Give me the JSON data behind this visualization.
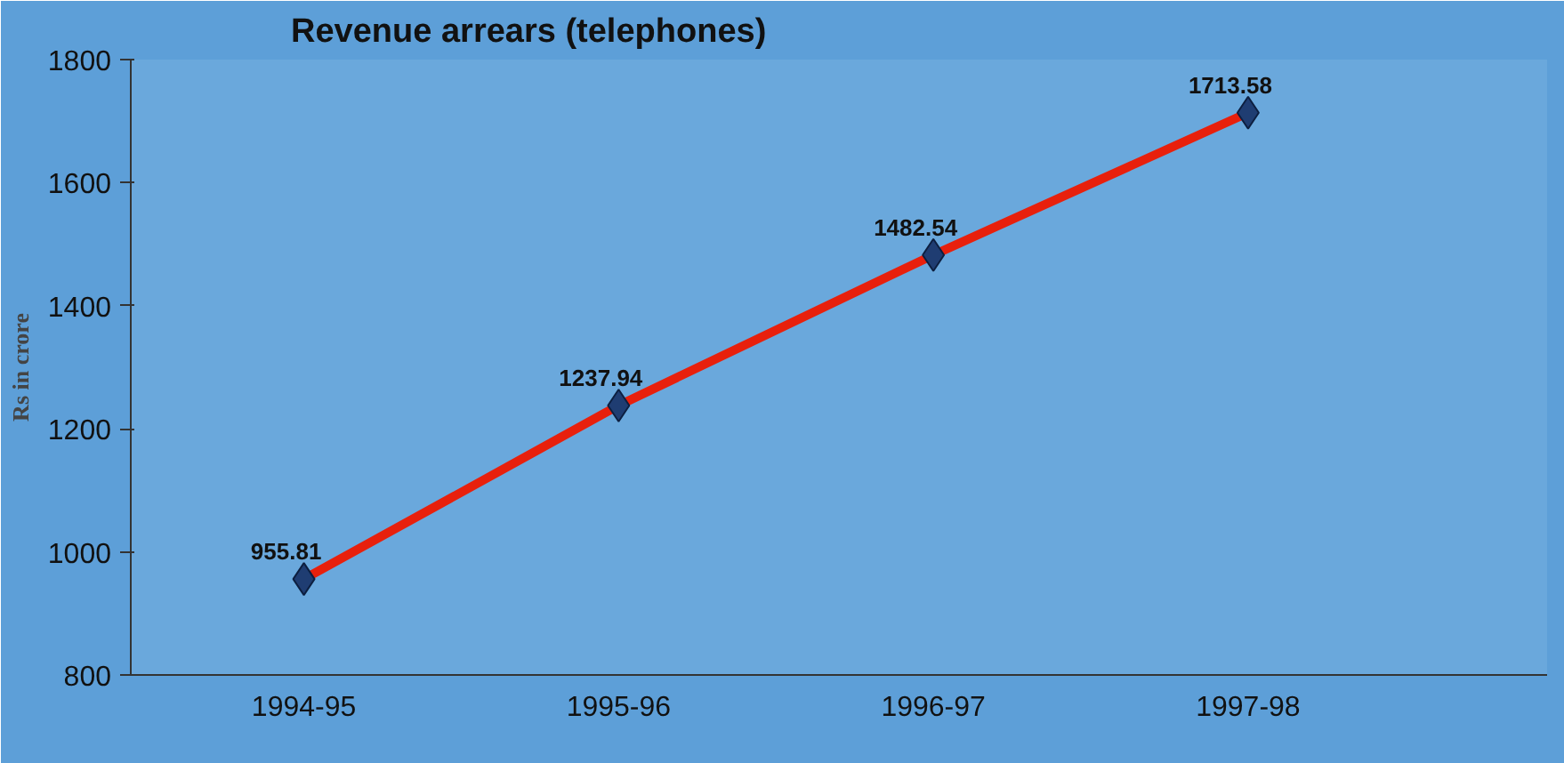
{
  "chart_data": {
    "type": "line",
    "title": "Revenue arrears (telephones)",
    "ylabel": "Rs in crore",
    "categories": [
      "1994-95",
      "1995-96",
      "1996-97",
      "1997-98"
    ],
    "series": [
      {
        "color": "#e8200c",
        "values": [
          955.81,
          1237.94,
          1482.54,
          1713.58
        ]
      }
    ],
    "ylim": [
      800,
      1800
    ],
    "yticks": [
      800,
      1000,
      1200,
      1400,
      1600,
      1800
    ],
    "grid": false,
    "marker": "diamond",
    "line_style": "solid",
    "data_labels": true
  }
}
